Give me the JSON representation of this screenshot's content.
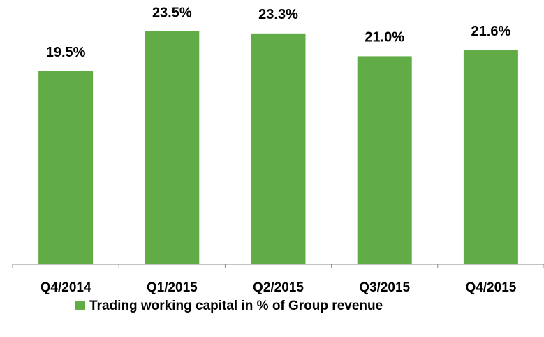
{
  "chart_data": {
    "type": "bar",
    "categories": [
      "Q4/2014",
      "Q1/2015",
      "Q2/2015",
      "Q3/2015",
      "Q4/2015"
    ],
    "series": [
      {
        "name": "Trading working capital in % of Group revenue",
        "color": "#62ac47",
        "values": [
          19.5,
          23.5,
          23.3,
          21.0,
          21.6
        ],
        "value_labels": [
          "19.5%",
          "23.5%",
          "23.3%",
          "21.0%",
          "21.6%"
        ]
      }
    ],
    "legend": "bottom"
  }
}
